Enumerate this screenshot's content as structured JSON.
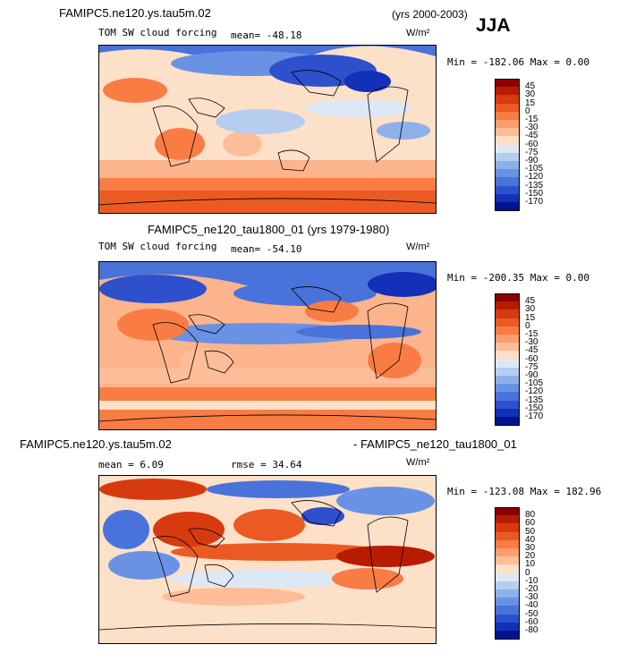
{
  "season": "JJA",
  "panel1": {
    "title_left": "FAMIPC5.ne120.ys.tau5m.02",
    "title_right": "(yrs 2000-2003)",
    "var": "TOM SW cloud forcing",
    "mean": "mean= -48.18",
    "units": "W/m²",
    "minmax": "Min = -182.06 Max =   0.00"
  },
  "panel2": {
    "title": "FAMIPC5_ne120_tau1800_01 (yrs 1979-1980)",
    "var": "TOM SW cloud forcing",
    "mean": "mean= -54.10",
    "units": "W/m²",
    "minmax": "Min = -200.35 Max =   0.00"
  },
  "panel3": {
    "title_left": "FAMIPC5.ne120.ys.tau5m.02",
    "title_right": "- FAMIPC5_ne120_tau1800_01",
    "mean": "mean =   6.09",
    "rmse": "rmse =  34.64",
    "units": "W/m²",
    "minmax": "Min = -123.08 Max = 182.96"
  },
  "chart_data": [
    {
      "type": "heatmap",
      "panel": "top",
      "title": "FAMIPC5.ne120.ys.tau5m.02 (yrs 2000-2003)",
      "variable": "TOM SW cloud forcing",
      "units": "W/m²",
      "mean": -48.18,
      "min": -182.06,
      "max": 0.0,
      "colorbar_levels": [
        "45",
        "30",
        "15",
        "0",
        "-15",
        "-30",
        "-45",
        "-60",
        "-75",
        "-90",
        "-105",
        "-120",
        "-135",
        "-150",
        "-170"
      ],
      "colorbar_colors": [
        "#8b0000",
        "#b81c00",
        "#d83a10",
        "#ec5a24",
        "#f87c44",
        "#fb9d6c",
        "#fcbd98",
        "#fde0c8",
        "#dde8f7",
        "#b6cdf0",
        "#8eb0ea",
        "#6a92e4",
        "#4a72db",
        "#2e50cc",
        "#1330b8",
        "#00148f"
      ]
    },
    {
      "type": "heatmap",
      "panel": "middle",
      "title": "FAMIPC5_ne120_tau1800_01 (yrs 1979-1980)",
      "variable": "TOM SW cloud forcing",
      "units": "W/m²",
      "mean": -54.1,
      "min": -200.35,
      "max": 0.0,
      "colorbar_levels": [
        "45",
        "30",
        "15",
        "0",
        "-15",
        "-30",
        "-45",
        "-60",
        "-75",
        "-90",
        "-105",
        "-120",
        "-135",
        "-150",
        "-170"
      ],
      "colorbar_colors": [
        "#8b0000",
        "#b81c00",
        "#d83a10",
        "#ec5a24",
        "#f87c44",
        "#fb9d6c",
        "#fcbd98",
        "#fde0c8",
        "#dde8f7",
        "#b6cdf0",
        "#8eb0ea",
        "#6a92e4",
        "#4a72db",
        "#2e50cc",
        "#1330b8",
        "#00148f"
      ]
    },
    {
      "type": "heatmap",
      "panel": "bottom",
      "title": "FAMIPC5.ne120.ys.tau5m.02 - FAMIPC5_ne120_tau1800_01",
      "units": "W/m²",
      "mean": 6.09,
      "rmse": 34.64,
      "min": -123.08,
      "max": 182.96,
      "colorbar_levels": [
        "80",
        "60",
        "50",
        "40",
        "30",
        "20",
        "10",
        "0",
        "-10",
        "-20",
        "-30",
        "-40",
        "-50",
        "-60",
        "-80"
      ],
      "colorbar_colors": [
        "#8b0000",
        "#b81c00",
        "#d83a10",
        "#ec5a24",
        "#f87c44",
        "#fb9d6c",
        "#fcbd98",
        "#fde0c8",
        "#dde8f7",
        "#b6cdf0",
        "#8eb0ea",
        "#6a92e4",
        "#4a72db",
        "#2e50cc",
        "#1330b8",
        "#00148f"
      ]
    }
  ]
}
